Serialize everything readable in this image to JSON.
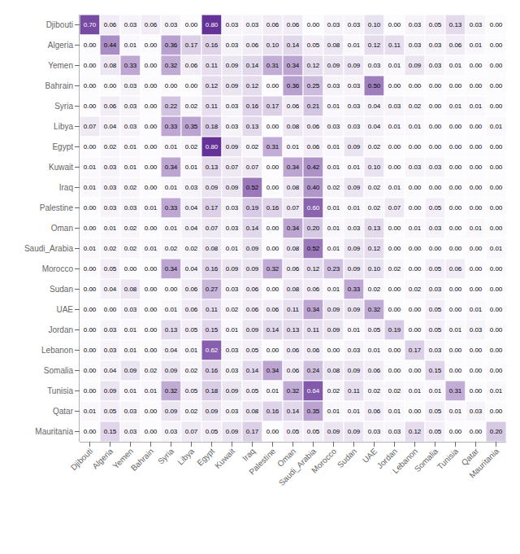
{
  "chart_data": {
    "type": "heatmap",
    "categories": [
      "Djibouti",
      "Algeria",
      "Yemen",
      "Bahrain",
      "Syria",
      "Libya",
      "Egypt",
      "Kuwait",
      "Iraq",
      "Palestine",
      "Oman",
      "Saudi_Arabia",
      "Morocco",
      "Sudan",
      "UAE",
      "Jordan",
      "Lebanon",
      "Somalia",
      "Tunisia",
      "Qatar",
      "Mauritania"
    ],
    "rows": [
      "Djibouti",
      "Algeria",
      "Yemen",
      "Bahrain",
      "Syria",
      "Libya",
      "Egypt",
      "Kuwait",
      "Iraq",
      "Palestine",
      "Oman",
      "Saudi_Arabia",
      "Morocco",
      "Sudan",
      "UAE",
      "Jordan",
      "Lebanon",
      "Somalia",
      "Tunisia",
      "Qatar",
      "Mauritania"
    ],
    "values": [
      [
        0.7,
        0.06,
        0.03,
        0.06,
        0.03,
        0.0,
        0.8,
        0.03,
        0.03,
        0.06,
        0.06,
        0.0,
        0.03,
        0.03,
        0.1,
        0.0,
        0.03,
        0.05,
        0.13,
        0.03,
        0.0
      ],
      [
        0.0,
        0.44,
        0.01,
        0.0,
        0.36,
        0.17,
        0.16,
        0.03,
        0.06,
        0.1,
        0.14,
        0.05,
        0.08,
        0.01,
        0.12,
        0.11,
        0.03,
        0.03,
        0.06,
        0.01,
        0.0
      ],
      [
        0.0,
        0.08,
        0.33,
        0.0,
        0.32,
        0.06,
        0.11,
        0.09,
        0.14,
        0.31,
        0.34,
        0.12,
        0.09,
        0.09,
        0.03,
        0.01,
        0.09,
        0.03,
        0.01,
        0.0,
        0.0
      ],
      [
        0.0,
        0.0,
        0.03,
        0.0,
        0.0,
        0.0,
        0.12,
        0.09,
        0.12,
        0.0,
        0.36,
        0.25,
        0.03,
        0.03,
        0.5,
        0.0,
        0.0,
        0.0,
        0.0,
        0.0,
        0.0
      ],
      [
        0.0,
        0.06,
        0.03,
        0.0,
        0.22,
        0.02,
        0.11,
        0.03,
        0.16,
        0.17,
        0.06,
        0.21,
        0.01,
        0.03,
        0.04,
        0.03,
        0.02,
        0.0,
        0.01,
        0.01,
        0.0
      ],
      [
        0.07,
        0.04,
        0.03,
        0.0,
        0.33,
        0.35,
        0.18,
        0.03,
        0.13,
        0.0,
        0.08,
        0.06,
        0.03,
        0.03,
        0.04,
        0.01,
        0.01,
        0.0,
        0.0,
        0.0,
        0.01
      ],
      [
        0.0,
        0.02,
        0.01,
        0.0,
        0.01,
        0.02,
        0.8,
        0.09,
        0.02,
        0.31,
        0.01,
        0.06,
        0.01,
        0.09,
        0.02,
        0.0,
        0.0,
        0.0,
        0.0,
        0.0,
        0.0
      ],
      [
        0.01,
        0.03,
        0.01,
        0.0,
        0.34,
        0.01,
        0.13,
        0.07,
        0.07,
        0.0,
        0.34,
        0.42,
        0.01,
        0.01,
        0.1,
        0.0,
        0.03,
        0.03,
        0.0,
        0.0,
        0.0
      ],
      [
        0.01,
        0.03,
        0.02,
        0.0,
        0.01,
        0.03,
        0.09,
        0.09,
        0.52,
        0.0,
        0.08,
        0.4,
        0.02,
        0.09,
        0.02,
        0.01,
        0.0,
        0.0,
        0.0,
        0.0,
        0.0
      ],
      [
        0.0,
        0.03,
        0.03,
        0.01,
        0.33,
        0.04,
        0.17,
        0.03,
        0.19,
        0.16,
        0.07,
        0.6,
        0.01,
        0.01,
        0.02,
        0.07,
        0.0,
        0.05,
        0.0,
        0.0,
        0.0
      ],
      [
        0.0,
        0.01,
        0.02,
        0.0,
        0.01,
        0.04,
        0.07,
        0.03,
        0.14,
        0.0,
        0.34,
        0.2,
        0.01,
        0.03,
        0.13,
        0.0,
        0.01,
        0.03,
        0.0,
        0.01,
        0.0
      ],
      [
        0.01,
        0.02,
        0.02,
        0.01,
        0.02,
        0.02,
        0.08,
        0.01,
        0.09,
        0.0,
        0.08,
        0.52,
        0.01,
        0.09,
        0.12,
        0.0,
        0.0,
        0.0,
        0.0,
        0.0,
        0.01
      ],
      [
        0.0,
        0.05,
        0.0,
        0.0,
        0.34,
        0.04,
        0.16,
        0.09,
        0.09,
        0.32,
        0.06,
        0.12,
        0.23,
        0.09,
        0.1,
        0.02,
        0.0,
        0.05,
        0.06,
        0.0,
        0.0
      ],
      [
        0.0,
        0.04,
        0.08,
        0.0,
        0.0,
        0.06,
        0.27,
        0.03,
        0.06,
        0.0,
        0.08,
        0.06,
        0.01,
        0.33,
        0.02,
        0.0,
        0.02,
        0.03,
        0.0,
        0.0,
        0.0
      ],
      [
        0.0,
        0.0,
        0.03,
        0.0,
        0.01,
        0.06,
        0.11,
        0.02,
        0.06,
        0.06,
        0.11,
        0.34,
        0.09,
        0.09,
        0.32,
        0.0,
        0.0,
        0.05,
        0.0,
        0.01,
        0.0
      ],
      [
        0.0,
        0.03,
        0.01,
        0.0,
        0.13,
        0.05,
        0.15,
        0.01,
        0.09,
        0.14,
        0.13,
        0.11,
        0.09,
        0.01,
        0.05,
        0.19,
        0.0,
        0.05,
        0.01,
        0.03,
        0.0
      ],
      [
        0.0,
        0.03,
        0.01,
        0.0,
        0.04,
        0.01,
        0.62,
        0.03,
        0.05,
        0.0,
        0.06,
        0.06,
        0.0,
        0.03,
        0.01,
        0.0,
        0.17,
        0.03,
        0.0,
        0.0,
        0.0
      ],
      [
        0.0,
        0.04,
        0.09,
        0.02,
        0.09,
        0.02,
        0.16,
        0.03,
        0.14,
        0.34,
        0.06,
        0.24,
        0.08,
        0.09,
        0.06,
        0.0,
        0.0,
        0.15,
        0.0,
        0.0,
        0.0
      ],
      [
        0.0,
        0.09,
        0.01,
        0.01,
        0.32,
        0.05,
        0.18,
        0.09,
        0.05,
        0.01,
        0.32,
        0.64,
        0.02,
        0.11,
        0.02,
        0.02,
        0.01,
        0.01,
        0.31,
        0.0,
        0.01
      ],
      [
        0.01,
        0.05,
        0.03,
        0.0,
        0.09,
        0.02,
        0.09,
        0.03,
        0.08,
        0.16,
        0.14,
        0.35,
        0.01,
        0.01,
        0.06,
        0.01,
        0.0,
        0.05,
        0.01,
        0.03,
        0.0
      ],
      [
        0.0,
        0.15,
        0.03,
        0.0,
        0.03,
        0.07,
        0.05,
        0.09,
        0.17,
        0.0,
        0.05,
        0.05,
        0.09,
        0.09,
        0.03,
        0.03,
        0.12,
        0.05,
        0.0,
        0.0,
        0.2
      ]
    ],
    "value_labels": [
      [
        "0.70",
        "0.06",
        "0.03",
        "0.06",
        "0.03",
        "0.00",
        "0.80",
        "0.03",
        "0.03",
        "0.06",
        "0.06",
        "0.00",
        "0.03",
        "0.03",
        "0.10",
        "0.00",
        "0.03",
        "0.05",
        "0.13",
        "0.03",
        "0.00"
      ],
      [
        "0.00",
        "0.44",
        "0.01",
        "0.00",
        "0.36",
        "0.17",
        "0.16",
        "0.03",
        "0.06",
        "0.10",
        "0.14",
        "0.05",
        "0.08",
        "0.01",
        "0.12",
        "0.11",
        "0.03",
        "0.03",
        "0.06",
        "0.01",
        "0.00"
      ],
      [
        "0.00",
        "0.08",
        "0.33",
        "0.00",
        "0.32",
        "0.06",
        "0.11",
        "0.09",
        "0.14",
        "0.31",
        "0.34",
        "0.12",
        "0.09",
        "0.09",
        "0.03",
        "0.01",
        "0.09",
        "0.03",
        "0.01",
        "0.00",
        "0.00"
      ],
      [
        "0.00",
        "0.00",
        "0.03",
        "0.00",
        "0.00",
        "0.00",
        "0.12",
        "0.09",
        "0.12",
        "0.00",
        "0.36",
        "0.25",
        "0.03",
        "0.03",
        "0.50",
        "0.00",
        "0.00",
        "0.00",
        "0.00",
        "0.00",
        "0.00"
      ],
      [
        "0.00",
        "0.06",
        "0.03",
        "0.00",
        "0.22",
        "0.02",
        "0.11",
        "0.03",
        "0.16",
        "0.17",
        "0.06",
        "0.21",
        "0.01",
        "0.03",
        "0.04",
        "0.03",
        "0.02",
        "0.00",
        "0.01",
        "0.01",
        "0.00"
      ],
      [
        "0.07",
        "0.04",
        "0.03",
        "0.00",
        "0.33",
        "0.35",
        "0.18",
        "0.03",
        "0.13",
        "0.00",
        "0.08",
        "0.06",
        "0.03",
        "0.03",
        "0.04",
        "0.01",
        "0.01",
        "0.00",
        "0.00",
        "0.00",
        "0.01"
      ],
      [
        "0.00",
        "0.02",
        "0.01",
        "0.00",
        "0.01",
        "0.02",
        "0.80",
        "0.09",
        "0.02",
        "0.31",
        "0.01",
        "0.06",
        "0.01",
        "0.09",
        "0.02",
        "0.00",
        "0.00",
        "0.00",
        "0.00",
        "0.00",
        "0.00"
      ],
      [
        "0.01",
        "0.03",
        "0.01",
        "0.00",
        "0.34",
        "0.01",
        "0.13",
        "0.07",
        "0.07",
        "0.00",
        "0.34",
        "0.42",
        "0.01",
        "0.01",
        "0.10",
        "0.00",
        "0.03",
        "0.03",
        "0.00",
        "0.00",
        "0.00"
      ],
      [
        "0.01",
        "0.03",
        "0.02",
        "0.00",
        "0.01",
        "0.03",
        "0.09",
        "0.09",
        "0.52",
        "0.00",
        "0.08",
        "0.40",
        "0.02",
        "0.09",
        "0.02",
        "0.01",
        "0.00",
        "0.00",
        "0.00",
        "0.00",
        "0.00"
      ],
      [
        "0.00",
        "0.03",
        "0.03",
        "0.01",
        "0.33",
        "0.04",
        "0.17",
        "0.03",
        "0.19",
        "0.16",
        "0.07",
        "0.60",
        "0.01",
        "0.01",
        "0.02",
        "0.07",
        "0.00",
        "0.05",
        "0.00",
        "0.00",
        "0.00"
      ],
      [
        "0.00",
        "0.01",
        "0.02",
        "0.00",
        "0.01",
        "0.04",
        "0.07",
        "0.03",
        "0.14",
        "0.00",
        "0.34",
        "0.20",
        "0.01",
        "0.03",
        "0.13",
        "0.00",
        "0.01",
        "0.03",
        "0.00",
        "0.01",
        "0.00"
      ],
      [
        "0.01",
        "0.02",
        "0.02",
        "0.01",
        "0.02",
        "0.02",
        "0.08",
        "0.01",
        "0.09",
        "0.00",
        "0.08",
        "0.52",
        "0.01",
        "0.09",
        "0.12",
        "0.00",
        "0.00",
        "0.00",
        "0.00",
        "0.00",
        "0.01"
      ],
      [
        "0.00",
        "0.05",
        "0.00",
        "0.00",
        "0.34",
        "0.04",
        "0.16",
        "0.09",
        "0.09",
        "0.32",
        "0.06",
        "0.12",
        "0.23",
        "0.09",
        "0.10",
        "0.02",
        "0.00",
        "0.05",
        "0.06",
        "0.00",
        "0.00"
      ],
      [
        "0.00",
        "0.04",
        "0.08",
        "0.00",
        "0.00",
        "0.06",
        "0.27",
        "0.03",
        "0.06",
        "0.00",
        "0.08",
        "0.06",
        "0.01",
        "0.33",
        "0.02",
        "0.00",
        "0.02",
        "0.03",
        "0.00",
        "0.00",
        "0.00"
      ],
      [
        "0.00",
        "0.00",
        "0.03",
        "0.00",
        "0.01",
        "0.06",
        "0.11",
        "0.02",
        "0.06",
        "0.06",
        "0.11",
        "0.34",
        "0.09",
        "0.09",
        "0.32",
        "0.00",
        "0.00",
        "0.05",
        "0.00",
        "0.01",
        "0.00"
      ],
      [
        "0.00",
        "0.03",
        "0.01",
        "0.00",
        "0.13",
        "0.05",
        "0.15",
        "0.01",
        "0.09",
        "0.14",
        "0.13",
        "0.11",
        "0.09",
        "0.01",
        "0.05",
        "0.19",
        "0.00",
        "0.05",
        "0.01",
        "0.03",
        "0.00"
      ],
      [
        "0.00",
        "0.03",
        "0.01",
        "0.00",
        "0.04",
        "0.01",
        "0.62",
        "0.03",
        "0.05",
        "0.00",
        "0.06",
        "0.06",
        "0.00",
        "0.03",
        "0.01",
        "0.00",
        "0.17",
        "0.03",
        "0.00",
        "0.00",
        "0.00"
      ],
      [
        "0.00",
        "0.04",
        "0.09",
        "0.02",
        "0.09",
        "0.02",
        "0.16",
        "0.03",
        "0.14",
        "0.34",
        "0.06",
        "0.24",
        "0.08",
        "0.09",
        "0.06",
        "0.00",
        "0.00",
        "0.15",
        "0.00",
        "0.00",
        "0.00"
      ],
      [
        "0.00",
        "0.09",
        "0.01",
        "0.01",
        "0.32",
        "0.05",
        "0.18",
        "0.09",
        "0.05",
        "0.01",
        "0.32",
        "0.64",
        "0.02",
        "0.11",
        "0.02",
        "0.02",
        "0.01",
        "0.01",
        "0.31",
        "0.00",
        "0.01"
      ],
      [
        "0.01",
        "0.05",
        "0.03",
        "0.00",
        "0.09",
        "0.02",
        "0.09",
        "0.03",
        "0.08",
        "0.16",
        "0.14",
        "0.35",
        "0.01",
        "0.01",
        "0.06",
        "0.01",
        "0.00",
        "0.05",
        "0.01",
        "0.03",
        "0.00"
      ],
      [
        "0.00",
        "0.15",
        "0.03",
        "0.00",
        "0.03",
        "0.07",
        "0.05",
        "0.09",
        "0.17",
        "0.00",
        "0.05",
        "0.05",
        "0.09",
        "0.09",
        "0.03",
        "0.03",
        "0.12",
        "0.05",
        "0.00",
        "0.00",
        "0.20"
      ]
    ],
    "color": "#3f007d",
    "color_range": [
      0,
      1
    ],
    "data_labels": true
  }
}
